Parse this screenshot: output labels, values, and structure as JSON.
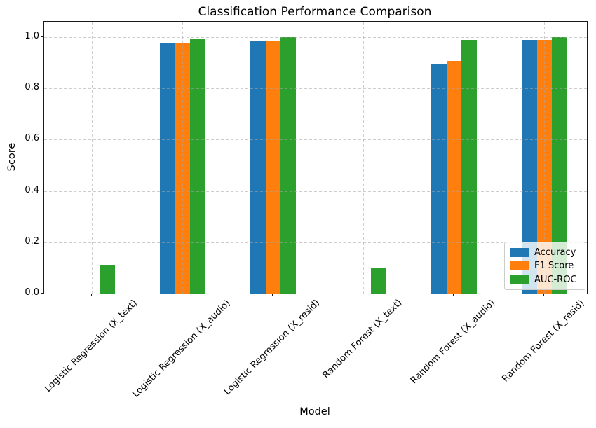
{
  "chart_data": {
    "type": "bar",
    "title": "Classification Performance Comparison",
    "xlabel": "Model",
    "ylabel": "Score",
    "categories": [
      "Logistic Regression (X_text)",
      "Logistic Regression (X_audio)",
      "Logistic Regression (X_resid)",
      "Random Forest (X_text)",
      "Random Forest (X_audio)",
      "Random Forest (X_resid)"
    ],
    "series": [
      {
        "name": "Accuracy",
        "color": "#1f77b4",
        "values": [
          0.0,
          0.976,
          0.987,
          0.0,
          0.897,
          0.988
        ]
      },
      {
        "name": "F1 Score",
        "color": "#ff7f0e",
        "values": [
          0.0,
          0.976,
          0.987,
          0.0,
          0.908,
          0.99
        ]
      },
      {
        "name": "AUC-ROC",
        "color": "#2ca02c",
        "values": [
          0.11,
          0.991,
          1.0,
          0.1,
          0.988,
          1.0
        ]
      }
    ],
    "yticks": [
      0.0,
      0.2,
      0.4,
      0.6,
      0.8,
      1.0
    ],
    "ylim": [
      0,
      1.06
    ],
    "x_tick_rotation": 45,
    "grid": "dashed",
    "grid_color": "#c8c8c8",
    "legend_position": "lower right",
    "background_color": "#ffffff",
    "spine_color": "#1a1a1a"
  }
}
